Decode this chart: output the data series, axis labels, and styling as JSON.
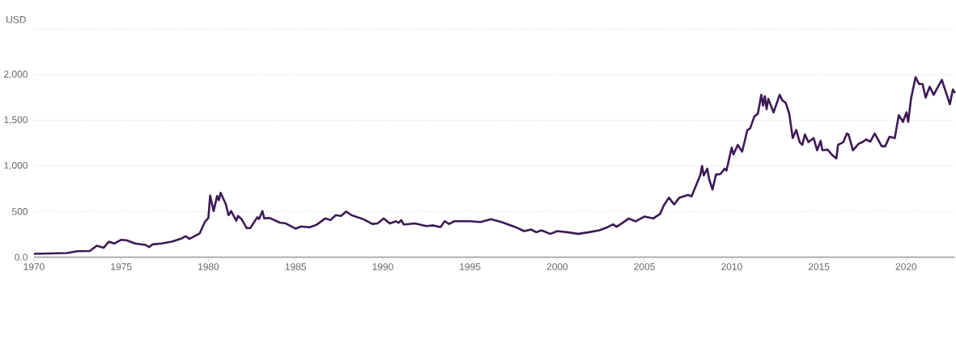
{
  "chart_data": {
    "type": "line",
    "ylabel": "USD",
    "x": [
      1970.0,
      1971.9,
      1972.5,
      1973.2,
      1973.6,
      1974.0,
      1974.3,
      1974.6,
      1975.0,
      1975.3,
      1975.8,
      1976.4,
      1976.6,
      1976.8,
      1977.3,
      1977.9,
      1978.5,
      1978.7,
      1978.9,
      1979.5,
      1979.8,
      1980.0,
      1980.1,
      1980.3,
      1980.5,
      1980.6,
      1980.7,
      1981.0,
      1981.15,
      1981.3,
      1981.6,
      1981.7,
      1981.9,
      1982.2,
      1982.4,
      1982.8,
      1982.9,
      1983.1,
      1983.2,
      1983.5,
      1984.1,
      1984.4,
      1985.0,
      1985.3,
      1985.8,
      1986.2,
      1986.7,
      1987.0,
      1987.3,
      1987.6,
      1987.9,
      1988.2,
      1988.9,
      1989.4,
      1989.7,
      1990.05,
      1990.4,
      1990.75,
      1990.9,
      1991.05,
      1991.2,
      1991.85,
      1992.5,
      1992.9,
      1993.3,
      1993.55,
      1993.8,
      1994.1,
      1995.0,
      1995.6,
      1996.2,
      1996.8,
      1997.6,
      1998.1,
      1998.5,
      1998.8,
      1999.1,
      1999.6,
      2000.0,
      2000.6,
      2001.2,
      2001.8,
      2002.4,
      2002.9,
      2003.2,
      2003.4,
      2003.7,
      2004.1,
      2004.5,
      2005.0,
      2005.5,
      2005.9,
      2006.1,
      2006.4,
      2006.7,
      2007.0,
      2007.5,
      2007.7,
      2008.2,
      2008.3,
      2008.4,
      2008.6,
      2008.7,
      2008.9,
      2009.1,
      2009.35,
      2009.6,
      2009.7,
      2010.0,
      2010.1,
      2010.35,
      2010.6,
      2010.9,
      2011.05,
      2011.3,
      2011.5,
      2011.7,
      2011.8,
      2011.9,
      2012.0,
      2012.1,
      2012.4,
      2012.75,
      2012.9,
      2013.1,
      2013.3,
      2013.5,
      2013.7,
      2013.9,
      2014.05,
      2014.2,
      2014.4,
      2014.7,
      2014.9,
      2015.1,
      2015.2,
      2015.5,
      2015.8,
      2016.0,
      2016.1,
      2016.4,
      2016.6,
      2016.7,
      2016.95,
      2017.3,
      2017.5,
      2017.7,
      2017.95,
      2018.2,
      2018.6,
      2018.8,
      2019.05,
      2019.35,
      2019.58,
      2019.82,
      2020.02,
      2020.12,
      2020.28,
      2020.54,
      2020.74,
      2020.94,
      2021.12,
      2021.35,
      2021.58,
      2021.74,
      2022.05,
      2022.28,
      2022.51,
      2022.68,
      2022.8
    ],
    "values": [
      36,
      45,
      65,
      68,
      125,
      104,
      170,
      149,
      190,
      185,
      149,
      134,
      110,
      140,
      149,
      170,
      208,
      230,
      200,
      260,
      387,
      430,
      675,
      505,
      670,
      625,
      705,
      580,
      461,
      505,
      400,
      452,
      417,
      318,
      318,
      437,
      417,
      505,
      425,
      430,
      378,
      372,
      312,
      336,
      327,
      355,
      424,
      406,
      460,
      452,
      500,
      460,
      415,
      364,
      370,
      424,
      370,
      394,
      376,
      406,
      358,
      370,
      340,
      348,
      330,
      394,
      364,
      394,
      394,
      385,
      415,
      385,
      330,
      285,
      303,
      273,
      294,
      255,
      285,
      273,
      255,
      273,
      294,
      330,
      360,
      333,
      370,
      424,
      392,
      445,
      424,
      475,
      564,
      652,
      578,
      652,
      682,
      667,
      899,
      1000,
      896,
      970,
      860,
      742,
      905,
      911,
      970,
      949,
      1201,
      1127,
      1231,
      1157,
      1394,
      1409,
      1542,
      1572,
      1780,
      1661,
      1765,
      1622,
      1735,
      1587,
      1780,
      1720,
      1691,
      1572,
      1305,
      1394,
      1261,
      1231,
      1344,
      1261,
      1305,
      1172,
      1275,
      1172,
      1178,
      1112,
      1083,
      1231,
      1261,
      1355,
      1344,
      1172,
      1246,
      1261,
      1290,
      1266,
      1355,
      1216,
      1216,
      1320,
      1305,
      1557,
      1483,
      1587,
      1483,
      1735,
      1972,
      1898,
      1898,
      1750,
      1868,
      1780,
      1838,
      1943,
      1809,
      1676,
      1838,
      1800
    ],
    "color": "#3d1a56",
    "xlim": [
      1970,
      2022.8
    ],
    "ylim": [
      0,
      2500
    ],
    "xticks": [
      1970,
      1975,
      1980,
      1985,
      1990,
      1995,
      2000,
      2005,
      2010,
      2015,
      2020
    ],
    "yticks": [
      {
        "value": 0,
        "label": "0.0"
      },
      {
        "value": 500,
        "label": "500"
      },
      {
        "value": 1000,
        "label": "1,000"
      },
      {
        "value": 1500,
        "label": "1,500"
      },
      {
        "value": 2000,
        "label": "2,000"
      },
      {
        "value": 2500,
        "label": null
      }
    ],
    "grid": "y",
    "marker": "none",
    "line_style": "solid"
  }
}
